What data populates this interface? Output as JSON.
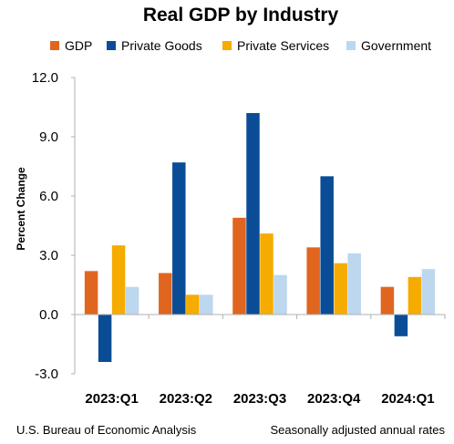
{
  "chart_data": {
    "type": "bar",
    "title": "Real GDP by Industry",
    "ylabel": "Percent Change",
    "xlabel": "",
    "categories": [
      "2023:Q1",
      "2023:Q2",
      "2023:Q3",
      "2023:Q4",
      "2024:Q1"
    ],
    "series": [
      {
        "name": "GDP",
        "color": "#e0661f",
        "values": [
          2.2,
          2.1,
          4.9,
          3.4,
          1.4
        ]
      },
      {
        "name": "Private Goods",
        "color": "#0a4d96",
        "values": [
          -2.4,
          7.7,
          10.2,
          7.0,
          -1.1
        ]
      },
      {
        "name": "Private Services",
        "color": "#f5ab00",
        "values": [
          3.5,
          1.0,
          4.1,
          2.6,
          1.9
        ]
      },
      {
        "name": "Government",
        "color": "#bcd7ee",
        "values": [
          1.4,
          1.0,
          2.0,
          3.1,
          2.3
        ]
      }
    ],
    "ylim": [
      -3.0,
      12.0
    ],
    "yticks": [
      -3.0,
      0.0,
      3.0,
      6.0,
      9.0,
      12.0
    ],
    "grid": false,
    "legend_position": "top"
  },
  "footer": {
    "source": "U.S. Bureau of Economic Analysis",
    "note": "Seasonally adjusted annual rates"
  }
}
